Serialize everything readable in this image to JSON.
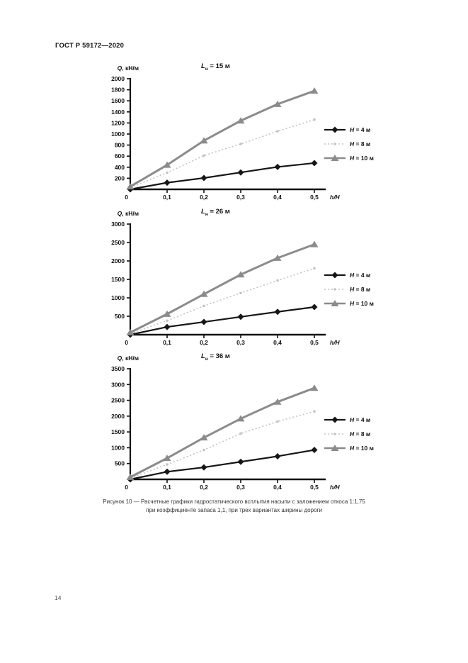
{
  "page": {
    "header": "ГОСТ Р 59172—2020",
    "page_number": "14",
    "caption": {
      "line1": "Рисунок 10 — Расчетные графики гидростатического всплытия насыпи с заложением откоса 1:1,75",
      "line2": "при коэффициенте запаса 1,1, при трех вариантах ширины дороги"
    }
  },
  "axis": {
    "origin_label": "0"
  },
  "colors": {
    "h4": "#161616",
    "h8": "#c3c3c3",
    "h10": "#8b8b8b",
    "axis": "#111111"
  },
  "chart_data": [
    {
      "type": "line",
      "title": {
        "var": "L",
        "sub": "н",
        "rest": " = 15 м"
      },
      "ylabel": "Q, кН/м",
      "xlabel": "h/H",
      "x": [
        0,
        0.1,
        0.2,
        0.3,
        0.4,
        0.5
      ],
      "x_tick_labels": [
        "0,1",
        "0,2",
        "0,3",
        "0,4",
        "0,5"
      ],
      "ylim": [
        0,
        2000
      ],
      "ytick_step": 200,
      "grid": false,
      "legend_position": "right",
      "series": [
        {
          "name": "H = 4 м",
          "marker": "diamond",
          "line": "solid",
          "color": "#161616",
          "values": [
            0,
            120,
            205,
            305,
            405,
            475
          ]
        },
        {
          "name": "H = 8 м",
          "marker": "dot",
          "line": "dotted",
          "color": "#c3c3c3",
          "values": [
            30,
            300,
            610,
            820,
            1050,
            1260
          ]
        },
        {
          "name": "H = 10 м",
          "marker": "triangle",
          "line": "solid",
          "color": "#8b8b8b",
          "values": [
            50,
            440,
            880,
            1240,
            1540,
            1780
          ]
        }
      ]
    },
    {
      "type": "line",
      "title": {
        "var": "L",
        "sub": "н",
        "rest": " = 26 м"
      },
      "ylabel": "Q, кН/м",
      "xlabel": "h/H",
      "x": [
        0,
        0.1,
        0.2,
        0.3,
        0.4,
        0.5
      ],
      "x_tick_labels": [
        "0,1",
        "0,2",
        "0,3",
        "0,4",
        "0,5"
      ],
      "ylim": [
        0,
        3000
      ],
      "ytick_step": 500,
      "grid": false,
      "legend_position": "right",
      "series": [
        {
          "name": "H = 4 м",
          "marker": "diamond",
          "line": "solid",
          "color": "#161616",
          "values": [
            0,
            210,
            345,
            485,
            620,
            750
          ]
        },
        {
          "name": "H = 8 м",
          "marker": "dot",
          "line": "dotted",
          "color": "#c3c3c3",
          "values": [
            30,
            380,
            780,
            1130,
            1470,
            1800
          ]
        },
        {
          "name": "H = 10 м",
          "marker": "triangle",
          "line": "solid",
          "color": "#8b8b8b",
          "values": [
            60,
            560,
            1100,
            1630,
            2080,
            2450
          ]
        }
      ]
    },
    {
      "type": "line",
      "title": {
        "var": "L",
        "sub": "н",
        "rest": " = 36 м"
      },
      "ylabel": "Q, кН/м",
      "xlabel": "h/H",
      "x": [
        0,
        0.1,
        0.2,
        0.3,
        0.4,
        0.5
      ],
      "x_tick_labels": [
        "0,1",
        "0,2",
        "0,3",
        "0,4",
        "0,5"
      ],
      "ylim": [
        0,
        3500
      ],
      "ytick_step": 500,
      "grid": false,
      "legend_position": "right",
      "series": [
        {
          "name": "H = 4 м",
          "marker": "diamond",
          "line": "solid",
          "color": "#161616",
          "values": [
            0,
            240,
            380,
            555,
            730,
            930
          ]
        },
        {
          "name": "H = 8 м",
          "marker": "dot",
          "line": "dotted",
          "color": "#c3c3c3",
          "values": [
            40,
            470,
            930,
            1450,
            1830,
            2150
          ]
        },
        {
          "name": "H = 10 м",
          "marker": "triangle",
          "line": "solid",
          "color": "#8b8b8b",
          "values": [
            70,
            670,
            1320,
            1920,
            2450,
            2890
          ]
        }
      ]
    }
  ]
}
